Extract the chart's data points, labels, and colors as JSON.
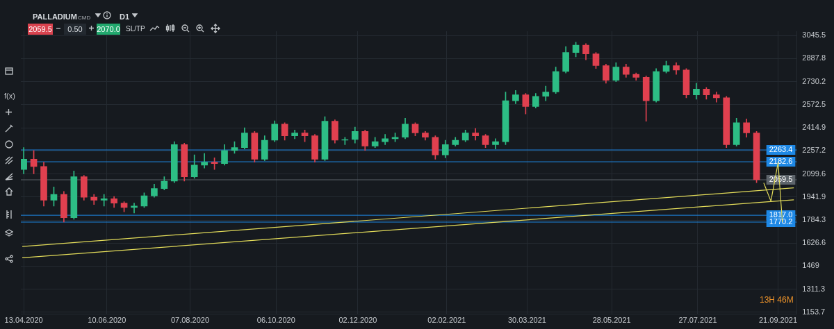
{
  "chart_data": {
    "type": "candlestick",
    "title": "PALLADIUM",
    "annotations": [
      "CMD",
      "D1",
      "2059.5",
      "0.50",
      "2070.0",
      "SL/TP",
      "f(x)",
      "13H 46M"
    ],
    "x": [
      "2020-04-13",
      "2020-04-20",
      "2020-04-27",
      "2020-05-04",
      "2020-05-11",
      "2020-05-18",
      "2020-05-25",
      "2020-06-01",
      "2020-06-08",
      "2020-06-15",
      "2020-06-22",
      "2020-06-29",
      "2020-07-06",
      "2020-07-13",
      "2020-07-20",
      "2020-07-27",
      "2020-08-03",
      "2020-08-10",
      "2020-08-17",
      "2020-08-24",
      "2020-08-31",
      "2020-09-07",
      "2020-09-14",
      "2020-09-21",
      "2020-09-28",
      "2020-10-05",
      "2020-10-12",
      "2020-10-19",
      "2020-10-26",
      "2020-11-02",
      "2020-11-09",
      "2020-11-16",
      "2020-11-23",
      "2020-11-30",
      "2020-12-07",
      "2020-12-14",
      "2020-12-21",
      "2020-12-28",
      "2021-01-04",
      "2021-01-11",
      "2021-01-18",
      "2021-01-25",
      "2021-02-01",
      "2021-02-08",
      "2021-02-15",
      "2021-02-22",
      "2021-03-01",
      "2021-03-08",
      "2021-03-15",
      "2021-03-22",
      "2021-03-29",
      "2021-04-05",
      "2021-04-12",
      "2021-04-19",
      "2021-04-26",
      "2021-05-03",
      "2021-05-10",
      "2021-05-17",
      "2021-05-24",
      "2021-05-31",
      "2021-06-07",
      "2021-06-14",
      "2021-06-21",
      "2021-06-28",
      "2021-07-05",
      "2021-07-12",
      "2021-07-19",
      "2021-07-26",
      "2021-08-02",
      "2021-08-09",
      "2021-08-16",
      "2021-08-23",
      "2021-08-30",
      "2021-09-06"
    ],
    "ohlc": [
      [
        2130,
        2280,
        2100,
        2200
      ],
      [
        2200,
        2260,
        2100,
        2150
      ],
      [
        2150,
        2180,
        1880,
        1920
      ],
      [
        1920,
        2010,
        1880,
        1960
      ],
      [
        1960,
        1980,
        1770,
        1800
      ],
      [
        1800,
        2120,
        1790,
        2080
      ],
      [
        2080,
        2090,
        1920,
        1940
      ],
      [
        1940,
        1960,
        1890,
        1920
      ],
      [
        1920,
        1960,
        1880,
        1930
      ],
      [
        1930,
        1945,
        1870,
        1900
      ],
      [
        1900,
        1910,
        1840,
        1870
      ],
      [
        1870,
        1900,
        1832,
        1880
      ],
      [
        1880,
        1970,
        1870,
        1950
      ],
      [
        1950,
        2030,
        1940,
        2000
      ],
      [
        2000,
        2080,
        1990,
        2050
      ],
      [
        2050,
        2320,
        2040,
        2300
      ],
      [
        2300,
        2310,
        2050,
        2080
      ],
      [
        2080,
        2230,
        2070,
        2160
      ],
      [
        2160,
        2240,
        2140,
        2180
      ],
      [
        2180,
        2210,
        2130,
        2170
      ],
      [
        2170,
        2300,
        2160,
        2260
      ],
      [
        2260,
        2320,
        2240,
        2280
      ],
      [
        2280,
        2415,
        2270,
        2380
      ],
      [
        2380,
        2390,
        2180,
        2200
      ],
      [
        2200,
        2360,
        2190,
        2330
      ],
      [
        2330,
        2462,
        2320,
        2440
      ],
      [
        2440,
        2450,
        2330,
        2360
      ],
      [
        2360,
        2400,
        2340,
        2380
      ],
      [
        2380,
        2400,
        2320,
        2360
      ],
      [
        2360,
        2370,
        2180,
        2200
      ],
      [
        2200,
        2491,
        2190,
        2460
      ],
      [
        2460,
        2470,
        2310,
        2330
      ],
      [
        2330,
        2350,
        2300,
        2335
      ],
      [
        2335,
        2420,
        2310,
        2390
      ],
      [
        2390,
        2400,
        2260,
        2290
      ],
      [
        2290,
        2350,
        2280,
        2320
      ],
      [
        2320,
        2370,
        2300,
        2340
      ],
      [
        2340,
        2380,
        2320,
        2350
      ],
      [
        2350,
        2480,
        2340,
        2440
      ],
      [
        2440,
        2450,
        2360,
        2380
      ],
      [
        2380,
        2390,
        2330,
        2350
      ],
      [
        2350,
        2360,
        2200,
        2230
      ],
      [
        2230,
        2330,
        2210,
        2300
      ],
      [
        2300,
        2350,
        2290,
        2330
      ],
      [
        2330,
        2400,
        2320,
        2380
      ],
      [
        2380,
        2410,
        2330,
        2360
      ],
      [
        2360,
        2370,
        2280,
        2300
      ],
      [
        2300,
        2340,
        2270,
        2320
      ],
      [
        2320,
        2660,
        2300,
        2600
      ],
      [
        2600,
        2670,
        2580,
        2640
      ],
      [
        2640,
        2650,
        2510,
        2560
      ],
      [
        2560,
        2650,
        2550,
        2630
      ],
      [
        2630,
        2700,
        2600,
        2660
      ],
      [
        2660,
        2830,
        2650,
        2800
      ],
      [
        2800,
        2970,
        2790,
        2930
      ],
      [
        2930,
        3000,
        2900,
        2980
      ],
      [
        2980,
        2990,
        2880,
        2920
      ],
      [
        2920,
        2930,
        2820,
        2840
      ],
      [
        2840,
        2850,
        2720,
        2740
      ],
      [
        2740,
        2860,
        2730,
        2830
      ],
      [
        2830,
        2850,
        2760,
        2780
      ],
      [
        2780,
        2790,
        2740,
        2760
      ],
      [
        2760,
        2770,
        2460,
        2600
      ],
      [
        2600,
        2820,
        2590,
        2800
      ],
      [
        2800,
        2870,
        2790,
        2840
      ],
      [
        2840,
        2860,
        2780,
        2810
      ],
      [
        2810,
        2820,
        2620,
        2640
      ],
      [
        2640,
        2720,
        2610,
        2680
      ],
      [
        2680,
        2690,
        2610,
        2640
      ],
      [
        2640,
        2660,
        2590,
        2620
      ],
      [
        2620,
        2630,
        2280,
        2300
      ],
      [
        2300,
        2480,
        2290,
        2450
      ],
      [
        2450,
        2476,
        2350,
        2380
      ],
      [
        2380,
        2390,
        2040,
        2059.5
      ]
    ],
    "colors": [
      "#2dbd85",
      "#e0404f",
      "#e0404f",
      "#2dbd85",
      "#e0404f",
      "#2dbd85",
      "#e0404f",
      "#e0404f",
      "#2dbd85",
      "#e0404f",
      "#e0404f",
      "#2dbd85",
      "#2dbd85",
      "#2dbd85",
      "#2dbd85",
      "#2dbd85",
      "#e0404f",
      "#2dbd85",
      "#2dbd85",
      "#e0404f",
      "#2dbd85",
      "#2dbd85",
      "#2dbd85",
      "#e0404f",
      "#2dbd85",
      "#2dbd85",
      "#e0404f",
      "#2dbd85",
      "#e0404f",
      "#e0404f",
      "#2dbd85",
      "#e0404f",
      "#2dbd85",
      "#2dbd85",
      "#e0404f",
      "#2dbd85",
      "#2dbd85",
      "#2dbd85",
      "#2dbd85",
      "#e0404f",
      "#e0404f",
      "#e0404f",
      "#2dbd85",
      "#2dbd85",
      "#2dbd85",
      "#e0404f",
      "#e0404f",
      "#2dbd85",
      "#2dbd85",
      "#2dbd85",
      "#e0404f",
      "#2dbd85",
      "#2dbd85",
      "#2dbd85",
      "#2dbd85",
      "#2dbd85",
      "#e0404f",
      "#e0404f",
      "#e0404f",
      "#2dbd85",
      "#e0404f",
      "#e0404f",
      "#e0404f",
      "#2dbd85",
      "#2dbd85",
      "#e0404f",
      "#e0404f",
      "#2dbd85",
      "#e0404f",
      "#e0404f",
      "#e0404f",
      "#2dbd85",
      "#e0404f",
      "#e0404f"
    ],
    "series": [
      {
        "type": "line",
        "color": "#e3dc5a",
        "x": [
          "2020-04-12",
          "2021-10-02"
        ],
        "values": [
          1603,
          2004
        ]
      },
      {
        "type": "line",
        "color": "#e3dc5a",
        "x": [
          "2020-04-12",
          "2021-10-02"
        ],
        "values": [
          1526,
          1923
        ]
      },
      {
        "type": "line",
        "color": "#e3dc5a",
        "x": [
          "2021-09-11",
          "2021-09-16",
          "2021-09-21",
          "2021-09-24"
        ],
        "values": [
          2038,
          1913,
          2176,
          1770
        ]
      }
    ],
    "ref_lines": [
      {
        "axis": "y",
        "value": 2263.4,
        "label": "2263.4",
        "color": "#1e88e5"
      },
      {
        "axis": "y",
        "value": 2182.6,
        "label": "2182.6",
        "color": "#1e88e5"
      },
      {
        "axis": "y",
        "value": 1817.0,
        "label": "1817.0",
        "color": "#1e88e5"
      },
      {
        "axis": "y",
        "value": 1770.2,
        "label": "1770.2",
        "color": "#1e88e5"
      },
      {
        "axis": "y",
        "value": 2059.5,
        "label": "2059.5",
        "color": "#5d646b"
      }
    ],
    "xlim": [
      "2020-04-11",
      "2021-10-04"
    ],
    "xticks": [
      {
        "value": "2020-04-13",
        "label": "13.04.2020"
      },
      {
        "value": "2020-06-10",
        "label": "10.06.2020"
      },
      {
        "value": "2020-08-07",
        "label": "07.08.2020"
      },
      {
        "value": "2020-10-06",
        "label": "06.10.2020"
      },
      {
        "value": "2020-12-02",
        "label": "02.12.2020"
      },
      {
        "value": "2021-02-02",
        "label": "02.02.2021"
      },
      {
        "value": "2021-03-30",
        "label": "30.03.2021"
      },
      {
        "value": "2021-05-28",
        "label": "28.05.2021"
      },
      {
        "value": "2021-07-27",
        "label": "27.07.2021"
      },
      {
        "value": "2021-09-21",
        "label": "21.09.2021"
      }
    ],
    "ylim": [
      1140,
      3075
    ],
    "yticks": [
      1153.7,
      1311.3,
      1469.0,
      1626.6,
      1784.3,
      1941.9,
      2099.6,
      2257.2,
      2414.9,
      2572.5,
      2730.2,
      2887.8,
      3045.5
    ],
    "grid": true,
    "legend": false
  }
}
